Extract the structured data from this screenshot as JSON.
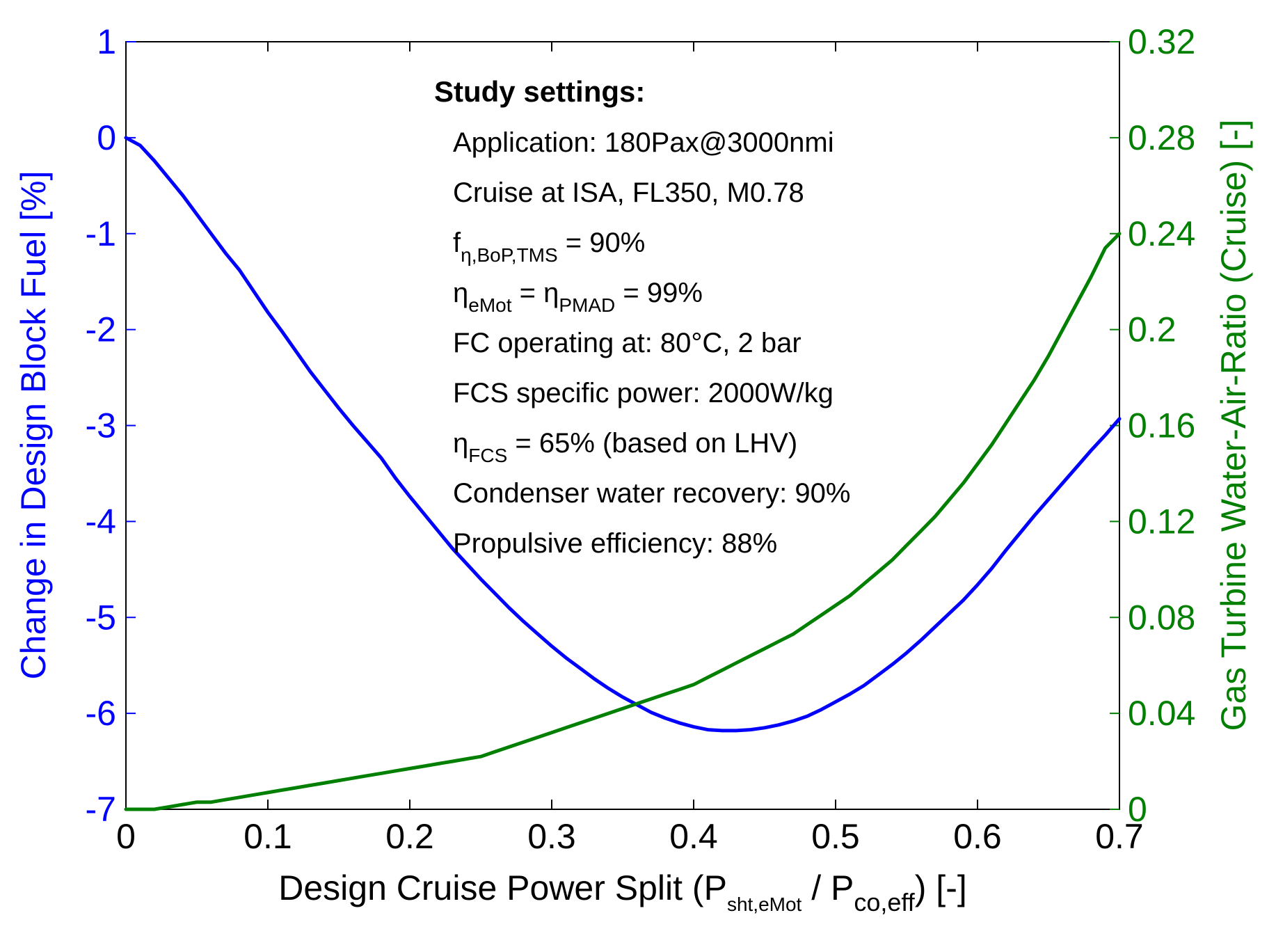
{
  "chart_data": {
    "type": "line",
    "title": "",
    "x": [
      0,
      0.01,
      0.02,
      0.03,
      0.04,
      0.05,
      0.06,
      0.07,
      0.08,
      0.09,
      0.1,
      0.11,
      0.12,
      0.13,
      0.14,
      0.15,
      0.16,
      0.17,
      0.18,
      0.19,
      0.2,
      0.21,
      0.22,
      0.23,
      0.24,
      0.25,
      0.26,
      0.27,
      0.28,
      0.29,
      0.3,
      0.31,
      0.32,
      0.33,
      0.34,
      0.35,
      0.36,
      0.37,
      0.38,
      0.39,
      0.4,
      0.41,
      0.42,
      0.43,
      0.44,
      0.45,
      0.46,
      0.47,
      0.48,
      0.49,
      0.5,
      0.51,
      0.52,
      0.53,
      0.54,
      0.55,
      0.56,
      0.57,
      0.58,
      0.59,
      0.6,
      0.61,
      0.62,
      0.63,
      0.64,
      0.65,
      0.66,
      0.67,
      0.68,
      0.69,
      0.7
    ],
    "xlabel": {
      "main": "Design Cruise Power Split (P",
      "sub1": "sht,eMot",
      "mid": " / P",
      "sub2": "co,eff",
      "end": ") [-]"
    },
    "xlim": [
      0,
      0.7
    ],
    "xticks": [
      "0",
      "0.1",
      "0.2",
      "0.3",
      "0.4",
      "0.5",
      "0.6",
      "0.7"
    ],
    "y_left": {
      "label": "Change in Design Block Fuel [%]",
      "lim": [
        -7,
        1
      ],
      "ticks": [
        "1",
        "0",
        "-1",
        "-2",
        "-3",
        "-4",
        "-5",
        "-6",
        "-7"
      ],
      "color": "#0000ff"
    },
    "y_right": {
      "label": "Gas Turbine Water-Air-Ratio (Cruise) [-]",
      "lim": [
        0,
        0.32
      ],
      "ticks": [
        "0.32",
        "0.28",
        "0.24",
        "0.2",
        "0.16",
        "0.12",
        "0.08",
        "0.04",
        "0"
      ],
      "color": "#007f00"
    },
    "series": [
      {
        "name": "Change in Design Block Fuel",
        "axis": "left",
        "color": "#0000ff",
        "values": [
          0,
          -0.08,
          -0.24,
          -0.42,
          -0.6,
          -0.8,
          -1.0,
          -1.2,
          -1.38,
          -1.6,
          -1.82,
          -2.02,
          -2.23,
          -2.44,
          -2.63,
          -2.82,
          -3.0,
          -3.17,
          -3.34,
          -3.55,
          -3.74,
          -3.92,
          -4.1,
          -4.28,
          -4.44,
          -4.6,
          -4.75,
          -4.9,
          -5.04,
          -5.17,
          -5.3,
          -5.42,
          -5.53,
          -5.64,
          -5.74,
          -5.83,
          -5.91,
          -5.99,
          -6.05,
          -6.1,
          -6.14,
          -6.17,
          -6.18,
          -6.18,
          -6.17,
          -6.15,
          -6.12,
          -6.08,
          -6.03,
          -5.96,
          -5.88,
          -5.8,
          -5.71,
          -5.6,
          -5.49,
          -5.37,
          -5.24,
          -5.1,
          -4.96,
          -4.82,
          -4.66,
          -4.49,
          -4.3,
          -4.12,
          -3.94,
          -3.77,
          -3.6,
          -3.43,
          -3.26,
          -3.1,
          -2.93
        ]
      },
      {
        "name": "Gas Turbine Water-Air-Ratio (Cruise)",
        "axis": "right",
        "color": "#007f00",
        "values": [
          0,
          0,
          0,
          0.001,
          0.002,
          0.003,
          0.003,
          0.004,
          0.005,
          0.006,
          0.007,
          0.008,
          0.009,
          0.01,
          0.011,
          0.012,
          0.013,
          0.014,
          0.015,
          0.016,
          0.017,
          0.018,
          0.019,
          0.02,
          0.021,
          0.022,
          0.024,
          0.026,
          0.028,
          0.03,
          0.032,
          0.034,
          0.036,
          0.038,
          0.04,
          0.042,
          0.044,
          0.046,
          0.048,
          0.05,
          0.052,
          0.055,
          0.058,
          0.061,
          0.064,
          0.067,
          0.07,
          0.073,
          0.077,
          0.081,
          0.085,
          0.089,
          0.094,
          0.099,
          0.104,
          0.11,
          0.116,
          0.122,
          0.129,
          0.136,
          0.144,
          0.152,
          0.161,
          0.17,
          0.179,
          0.189,
          0.2,
          0.211,
          0.222,
          0.234,
          0.24
        ]
      }
    ],
    "grid": false,
    "annotation": {
      "title": "Study settings:",
      "lines": [
        {
          "parts": [
            {
              "t": "Application: 180Pax@3000nmi"
            }
          ]
        },
        {
          "parts": [
            {
              "t": "Cruise at ISA, FL350, M0.78"
            }
          ]
        },
        {
          "parts": [
            {
              "t": "f"
            },
            {
              "t": "η,BoP,TMS",
              "sub": true
            },
            {
              "t": " = 90%"
            }
          ]
        },
        {
          "parts": [
            {
              "t": "η"
            },
            {
              "t": "eMot",
              "sub": true
            },
            {
              "t": " = η"
            },
            {
              "t": "PMAD",
              "sub": true
            },
            {
              "t": " =  99%"
            }
          ]
        },
        {
          "parts": [
            {
              "t": "FC operating at: 80°C, 2 bar"
            }
          ]
        },
        {
          "parts": [
            {
              "t": "FCS specific power: 2000W/kg"
            }
          ]
        },
        {
          "parts": [
            {
              "t": "η"
            },
            {
              "t": "FCS",
              "sub": true
            },
            {
              "t": " =  65% (based on LHV)"
            }
          ]
        },
        {
          "parts": [
            {
              "t": "Condenser water recovery: 90%"
            }
          ]
        },
        {
          "parts": [
            {
              "t": "Propulsive efficiency: 88%"
            }
          ]
        }
      ]
    }
  }
}
